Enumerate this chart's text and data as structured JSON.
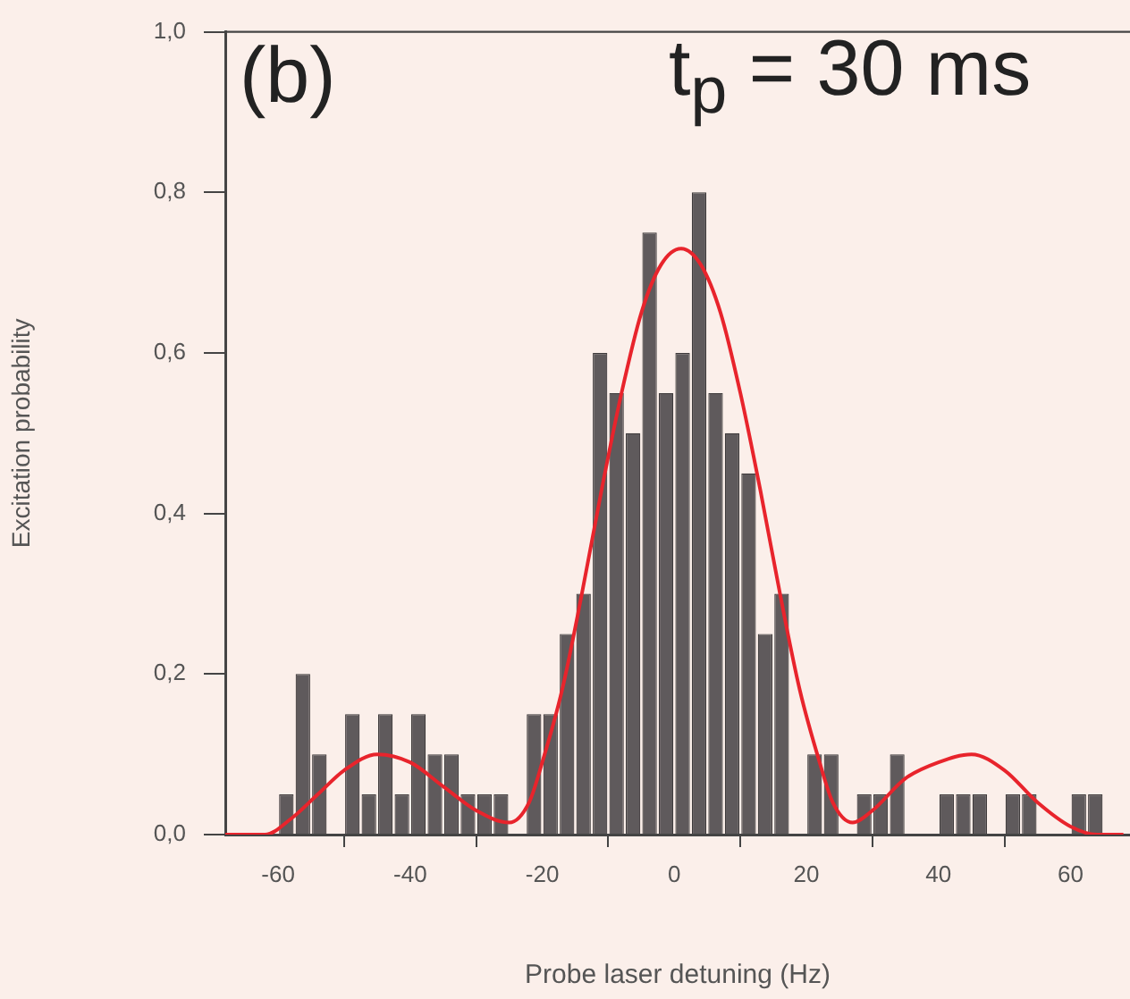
{
  "chart_data": {
    "type": "histogram",
    "xlabel": "Probe laser detuning (Hz)",
    "ylabel": "Excitation probability",
    "annotations": [
      "(b)",
      "t$_{p}$ = 30 ms"
    ],
    "bins": [
      -60,
      -57.5,
      -55,
      -52.5,
      -50,
      -47.5,
      -45,
      -42.5,
      -40,
      -37.5,
      -35,
      -32.5,
      -30,
      -27.5,
      -25,
      -22.5,
      -20,
      -17.5,
      -15,
      -12.5,
      -10,
      -7.5,
      -5,
      -2.5,
      0,
      2.5,
      5,
      7.5,
      10,
      12.5,
      15,
      17.5,
      20,
      22.5,
      25,
      27.5,
      30,
      32.5,
      35,
      37.5,
      40,
      42.5,
      45,
      47.5,
      50,
      52.5,
      55,
      57.5,
      60,
      62.5,
      65
    ],
    "values": [
      0.05,
      0.2,
      0.1,
      0,
      0.15,
      0.05,
      0.15,
      0.05,
      0.15,
      0.1,
      0.1,
      0.05,
      0.05,
      0.05,
      0,
      0.15,
      0.15,
      0.25,
      0.3,
      0.6,
      0.55,
      0.5,
      0.75,
      0.55,
      0.6,
      0.8,
      0.55,
      0.5,
      0.45,
      0.25,
      0.3,
      0,
      0.1,
      0.1,
      0,
      0.05,
      0.05,
      0.1,
      0,
      0,
      0.05,
      0.05,
      0.05,
      0,
      0.05,
      0.05,
      0,
      0,
      0.05,
      0.05
    ],
    "color": "#5f5a5c",
    "series": [
      {
        "type": "line",
        "color": "#e8242c",
        "x": [
          -68,
          -62,
          -58,
          -54,
          -50,
          -45,
          -40,
          -35,
          -30,
          -25,
          -22,
          -20,
          -17,
          -14,
          -11,
          -8,
          -5,
          -2,
          1,
          4,
          7,
          10,
          13,
          16,
          19,
          22,
          24,
          27,
          30,
          35,
          40,
          45,
          50,
          55,
          60,
          64,
          68
        ],
        "values": [
          0,
          0,
          0.02,
          0.05,
          0.08,
          0.1,
          0.09,
          0.06,
          0.03,
          0.015,
          0.04,
          0.09,
          0.18,
          0.3,
          0.43,
          0.55,
          0.65,
          0.71,
          0.73,
          0.71,
          0.65,
          0.55,
          0.43,
          0.3,
          0.18,
          0.09,
          0.04,
          0.015,
          0.03,
          0.07,
          0.09,
          0.1,
          0.08,
          0.04,
          0.01,
          0,
          0
        ]
      }
    ],
    "xlim": [
      -68,
      69
    ],
    "xticks": [
      -60,
      -40,
      -20,
      0,
      20,
      40,
      60
    ],
    "ylim": [
      0,
      1
    ],
    "yticks": [
      {
        "value": 0,
        "label": "0,0"
      },
      {
        "value": 0.2,
        "label": "0,2"
      },
      {
        "value": 0.4,
        "label": "0,4"
      },
      {
        "value": 0.6,
        "label": "0,6"
      },
      {
        "value": 0.8,
        "label": "0,8"
      },
      {
        "value": 1,
        "label": "1,0"
      }
    ],
    "grid": false,
    "legend": false,
    "marker": "none",
    "line_style": "solid"
  }
}
